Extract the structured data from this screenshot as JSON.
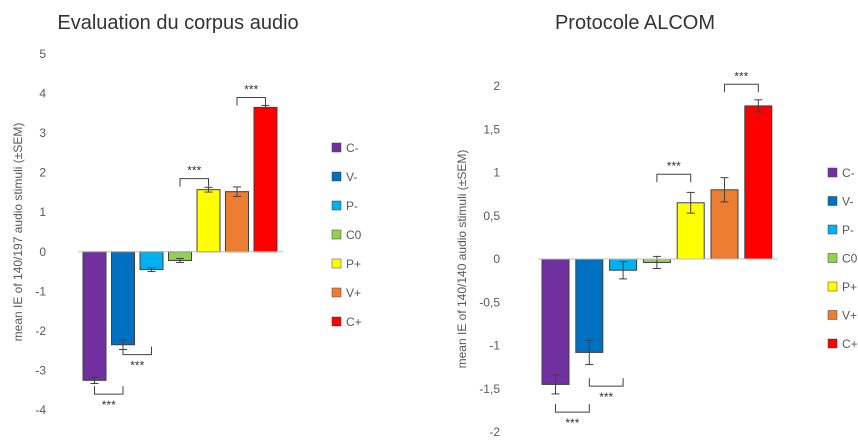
{
  "chart_data": [
    {
      "type": "bar",
      "title": "Evaluation du corpus audio",
      "ylabel": "mean IE of 140/197 audio stimuli (±SEM)",
      "ylim": [
        -4,
        5
      ],
      "yticks": [
        "-4",
        "-3",
        "-2",
        "-1",
        "0",
        "1",
        "2",
        "3",
        "4",
        "5"
      ],
      "categories": [
        "C-",
        "V-",
        "P-",
        "C0",
        "P+",
        "V+",
        "C+"
      ],
      "values": [
        -3.25,
        -2.35,
        -0.45,
        -0.22,
        1.57,
        1.52,
        3.65
      ],
      "errors": [
        0.08,
        0.12,
        0.05,
        0.05,
        0.06,
        0.12,
        0.05
      ],
      "colors": [
        "#7030a0",
        "#0070c0",
        "#00b0f0",
        "#92d050",
        "#ffff00",
        "#ed7d31",
        "#ff0000"
      ],
      "legend_position": "right",
      "grid": false,
      "significance": [
        {
          "label": "***",
          "from": 0,
          "to": 1,
          "side": "below",
          "at": -3.6
        },
        {
          "label": "***",
          "from": 1,
          "to": 2,
          "side": "below",
          "at": -2.6
        },
        {
          "label": "***",
          "from": 3,
          "to": 4,
          "side": "above",
          "at": 1.85
        },
        {
          "label": "***",
          "from": 5,
          "to": 6,
          "side": "above",
          "at": 3.9
        }
      ]
    },
    {
      "type": "bar",
      "title": "Protocole ALCOM",
      "ylabel": "mean IE of 140/140 audio stimuli (±SEM)",
      "ylim": [
        -2,
        2
      ],
      "yticks": [
        "-2",
        "-1,5",
        "-1",
        "-0,5",
        "0",
        "0,5",
        "1",
        "1,5",
        "2"
      ],
      "categories": [
        "C-",
        "V-",
        "P-",
        "C0",
        "P+",
        "V+",
        "C+"
      ],
      "values": [
        -1.45,
        -1.08,
        -0.13,
        -0.04,
        0.65,
        0.8,
        1.77
      ],
      "errors": [
        0.11,
        0.14,
        0.1,
        0.07,
        0.12,
        0.14,
        0.07
      ],
      "colors": [
        "#7030a0",
        "#0070c0",
        "#00b0f0",
        "#92d050",
        "#ffff00",
        "#ed7d31",
        "#ff0000"
      ],
      "legend_position": "right",
      "grid": false,
      "significance": [
        {
          "label": "***",
          "from": 0,
          "to": 1,
          "side": "below",
          "at": -1.77
        },
        {
          "label": "***",
          "from": 1,
          "to": 2,
          "side": "below",
          "at": -1.47
        },
        {
          "label": "***",
          "from": 3,
          "to": 4,
          "side": "above",
          "at": 0.98
        },
        {
          "label": "***",
          "from": 5,
          "to": 6,
          "side": "above",
          "at": 2.02
        }
      ]
    }
  ]
}
